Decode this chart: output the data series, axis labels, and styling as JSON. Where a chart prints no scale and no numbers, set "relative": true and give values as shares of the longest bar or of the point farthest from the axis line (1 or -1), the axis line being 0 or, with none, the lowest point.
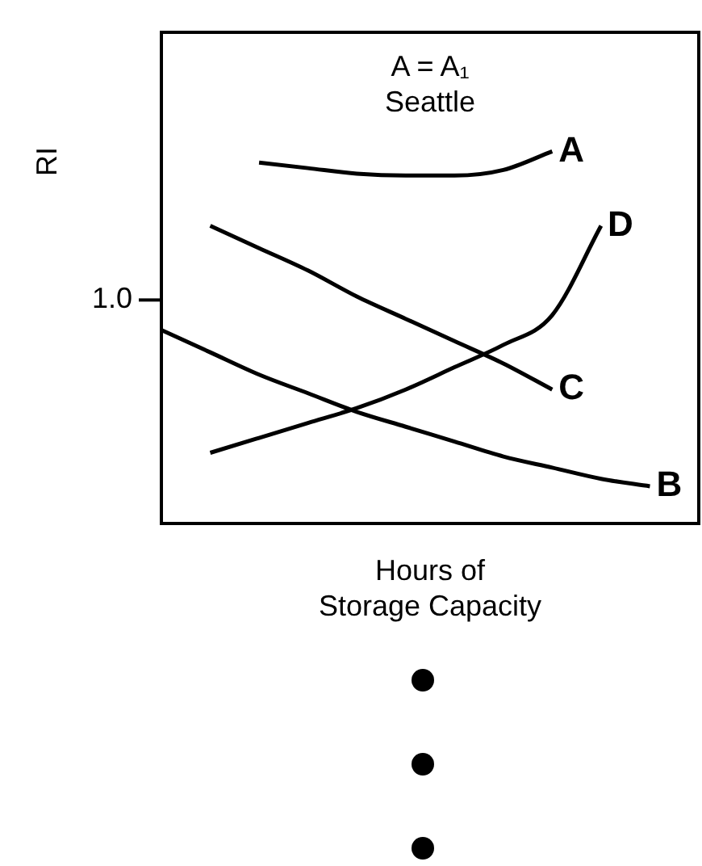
{
  "chart_data": {
    "type": "line",
    "relative": true,
    "title": "A = A₁",
    "subtitle": "Seattle",
    "ylabel": "RI",
    "xlabel": "Hours of\nStorage Capacity",
    "annotations": [
      "1.0"
    ],
    "legend": false,
    "marker": "none",
    "line_style": "solid",
    "grid": false,
    "categories": [
      null,
      null,
      null,
      null,
      null,
      null,
      null,
      null,
      null,
      null,
      null,
      null
    ],
    "series": [
      {
        "name": "A",
        "color": "#000000",
        "values": [
          null,
          null,
          0.97,
          0.955,
          0.94,
          0.935,
          0.935,
          0.95,
          1.0,
          null,
          null,
          null
        ]
      },
      {
        "name": "B",
        "color": "#000000",
        "values": [
          0.52,
          0.46,
          0.4,
          0.35,
          0.3,
          0.26,
          0.22,
          0.18,
          0.15,
          0.12,
          0.1,
          null
        ]
      },
      {
        "name": "C",
        "color": "#000000",
        "values": [
          null,
          0.8,
          0.74,
          0.68,
          0.61,
          0.55,
          0.49,
          0.43,
          0.36,
          null,
          null,
          null
        ]
      },
      {
        "name": "D",
        "color": "#000000",
        "values": [
          null,
          0.19,
          0.23,
          0.27,
          0.31,
          0.36,
          0.42,
          0.48,
          0.56,
          0.8,
          null,
          null
        ]
      }
    ]
  }
}
